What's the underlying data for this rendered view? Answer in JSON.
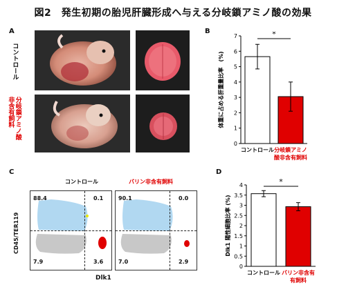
{
  "figure_title": "図2　発生初期の胎児肝臓形成へ与える分岐鎖アミノ酸の効果",
  "panels": {
    "A": {
      "label": "A",
      "row_labels": [
        "コントロール",
        "分岐鎖アミノ酸\n非含有飼料"
      ],
      "row_label_colors": [
        "#111111",
        "#e00000"
      ]
    },
    "B": {
      "label": "B"
    },
    "C": {
      "label": "C",
      "col_headers": [
        "コントロール",
        "バリン非含有飼料"
      ],
      "ylabel": "CD45/TER119",
      "xlabel": "Dlk1",
      "plots": [
        {
          "ul": "88.4",
          "ur": "0.1",
          "ll": "7.9",
          "lr": "3.6"
        },
        {
          "ul": "90.1",
          "ur": "0.0",
          "ll": "7.0",
          "lr": "2.9"
        }
      ]
    },
    "D": {
      "label": "D"
    }
  },
  "chart_data": [
    {
      "type": "bar",
      "title": "",
      "ylabel": "体重に占める肝重量比率　(%)",
      "xlabel": "",
      "categories": [
        "コントロール",
        "分岐鎖アミノ\n酸非含有飼料"
      ],
      "category_colors": [
        "#111111",
        "#e00000"
      ],
      "values": [
        5.65,
        3.05
      ],
      "errors": [
        0.8,
        0.95
      ],
      "bar_colors": [
        "#ffffff",
        "#e00000"
      ],
      "ylim": [
        0,
        7
      ],
      "yticks": [
        "0",
        "1",
        "2",
        "3",
        "4",
        "5",
        "6",
        "7"
      ],
      "significance": "*",
      "grid": false
    },
    {
      "type": "bar",
      "title": "",
      "ylabel": "Dlk1 陽性細胞比率 (%)",
      "xlabel": "",
      "categories": [
        "コントロール",
        "バリン非含有\n有飼料"
      ],
      "category_colors": [
        "#111111",
        "#e00000"
      ],
      "values": [
        3.57,
        2.93
      ],
      "errors": [
        0.15,
        0.2
      ],
      "bar_colors": [
        "#ffffff",
        "#e00000"
      ],
      "ylim": [
        0,
        4
      ],
      "yticks": [
        "0",
        "0.5",
        "1",
        "1.5",
        "2",
        "2.5",
        "3",
        "3.5",
        "4"
      ],
      "significance": "*",
      "grid": false
    }
  ]
}
